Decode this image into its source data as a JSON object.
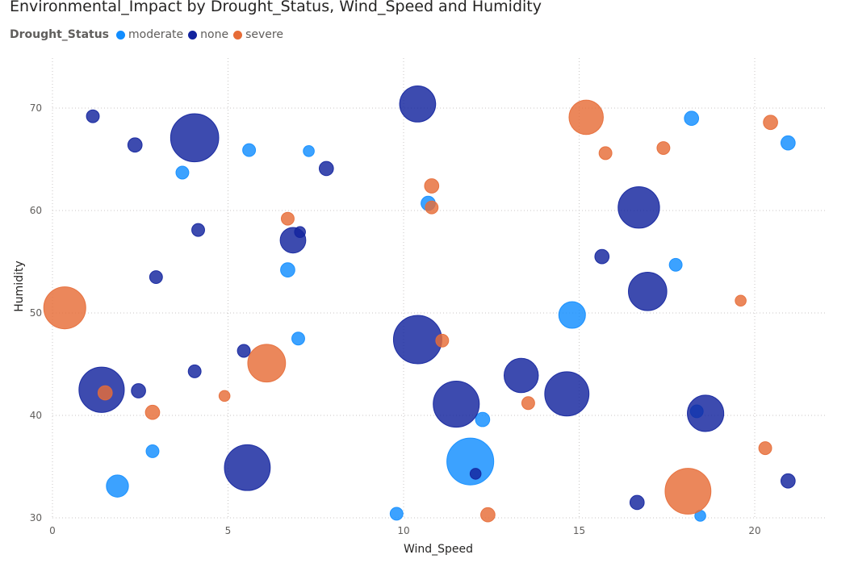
{
  "chart_data": {
    "type": "scatter",
    "title": "Environmental_Impact by Drought_Status, Wind_Speed and Humidity",
    "legend_title": "Drought_Status",
    "legend_position": "top-left",
    "xlabel": "Wind_Speed",
    "ylabel": "Humidity",
    "xlim": [
      0,
      22
    ],
    "ylim": [
      30,
      75
    ],
    "x_ticks": [
      0,
      5,
      10,
      15,
      20
    ],
    "y_ticks": [
      30,
      40,
      50,
      60,
      70
    ],
    "grid": true,
    "size_encoding": "Environmental_Impact",
    "series": [
      {
        "name": "moderate",
        "color": "#118DFF",
        "points": [
          {
            "x": 3.7,
            "y": 63.7,
            "size": 2
          },
          {
            "x": 5.6,
            "y": 65.9,
            "size": 2
          },
          {
            "x": 7.3,
            "y": 65.8,
            "size": 1
          },
          {
            "x": 1.85,
            "y": 33.1,
            "size": 12
          },
          {
            "x": 2.85,
            "y": 36.5,
            "size": 2
          },
          {
            "x": 6.7,
            "y": 54.2,
            "size": 3
          },
          {
            "x": 7.0,
            "y": 47.5,
            "size": 2
          },
          {
            "x": 9.8,
            "y": 30.4,
            "size": 2
          },
          {
            "x": 10.7,
            "y": 60.7,
            "size": 3
          },
          {
            "x": 11.9,
            "y": 35.5,
            "size": 80
          },
          {
            "x": 12.25,
            "y": 39.6,
            "size": 3
          },
          {
            "x": 14.8,
            "y": 49.8,
            "size": 20
          },
          {
            "x": 17.75,
            "y": 54.7,
            "size": 2
          },
          {
            "x": 18.2,
            "y": 69.0,
            "size": 3
          },
          {
            "x": 18.35,
            "y": 40.4,
            "size": 2
          },
          {
            "x": 18.45,
            "y": 30.2,
            "size": 1
          },
          {
            "x": 20.95,
            "y": 66.6,
            "size": 3
          }
        ]
      },
      {
        "name": "none",
        "color": "#12239E",
        "points": [
          {
            "x": 1.15,
            "y": 69.2,
            "size": 2
          },
          {
            "x": 2.35,
            "y": 66.4,
            "size": 3
          },
          {
            "x": 4.05,
            "y": 67.1,
            "size": 85
          },
          {
            "x": 7.8,
            "y": 64.1,
            "size": 3
          },
          {
            "x": 2.95,
            "y": 53.5,
            "size": 2
          },
          {
            "x": 4.15,
            "y": 58.1,
            "size": 2
          },
          {
            "x": 6.85,
            "y": 57.1,
            "size": 18
          },
          {
            "x": 7.05,
            "y": 57.9,
            "size": 1
          },
          {
            "x": 1.4,
            "y": 42.5,
            "size": 74
          },
          {
            "x": 2.45,
            "y": 42.4,
            "size": 3
          },
          {
            "x": 4.05,
            "y": 44.3,
            "size": 2
          },
          {
            "x": 5.45,
            "y": 46.3,
            "size": 2
          },
          {
            "x": 5.55,
            "y": 34.9,
            "size": 76
          },
          {
            "x": 10.4,
            "y": 70.4,
            "size": 43
          },
          {
            "x": 10.4,
            "y": 47.4,
            "size": 86
          },
          {
            "x": 11.5,
            "y": 41.1,
            "size": 77
          },
          {
            "x": 12.05,
            "y": 34.3,
            "size": 1
          },
          {
            "x": 13.35,
            "y": 43.9,
            "size": 38
          },
          {
            "x": 14.65,
            "y": 42.1,
            "size": 70
          },
          {
            "x": 15.65,
            "y": 55.5,
            "size": 3
          },
          {
            "x": 16.65,
            "y": 31.5,
            "size": 3
          },
          {
            "x": 16.7,
            "y": 60.3,
            "size": 60
          },
          {
            "x": 16.95,
            "y": 52.1,
            "size": 50
          },
          {
            "x": 18.6,
            "y": 40.2,
            "size": 44
          },
          {
            "x": 20.95,
            "y": 33.6,
            "size": 3
          }
        ]
      },
      {
        "name": "severe",
        "color": "#E66C37",
        "points": [
          {
            "x": 0.35,
            "y": 50.5,
            "size": 62
          },
          {
            "x": 1.5,
            "y": 42.2,
            "size": 3
          },
          {
            "x": 2.85,
            "y": 40.3,
            "size": 3
          },
          {
            "x": 4.9,
            "y": 41.9,
            "size": 1
          },
          {
            "x": 6.1,
            "y": 45.1,
            "size": 48
          },
          {
            "x": 6.7,
            "y": 59.2,
            "size": 2
          },
          {
            "x": 10.8,
            "y": 62.4,
            "size": 3
          },
          {
            "x": 10.8,
            "y": 60.3,
            "size": 2
          },
          {
            "x": 11.1,
            "y": 47.3,
            "size": 2
          },
          {
            "x": 12.4,
            "y": 30.3,
            "size": 3
          },
          {
            "x": 13.55,
            "y": 41.2,
            "size": 2
          },
          {
            "x": 15.2,
            "y": 69.1,
            "size": 38
          },
          {
            "x": 15.75,
            "y": 65.6,
            "size": 2
          },
          {
            "x": 17.4,
            "y": 66.1,
            "size": 2
          },
          {
            "x": 18.1,
            "y": 32.6,
            "size": 76
          },
          {
            "x": 19.6,
            "y": 51.2,
            "size": 1
          },
          {
            "x": 20.3,
            "y": 36.8,
            "size": 2
          },
          {
            "x": 20.45,
            "y": 68.6,
            "size": 3
          }
        ]
      }
    ]
  }
}
